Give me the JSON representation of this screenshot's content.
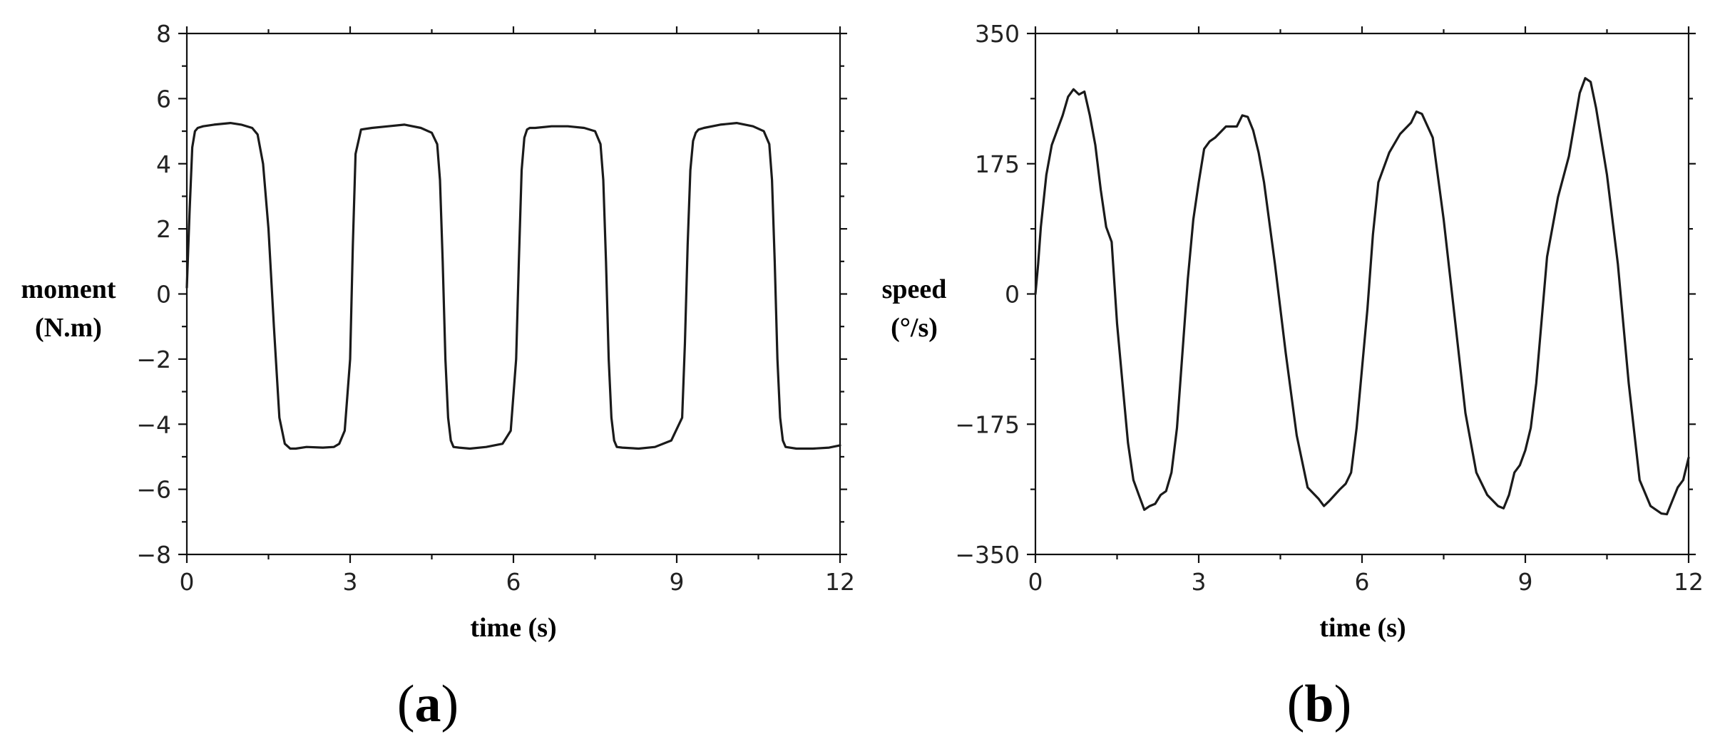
{
  "chart_data": [
    {
      "type": "line",
      "panel_label": "a",
      "xlabel": "time (s)",
      "ylabel": [
        "moment",
        "(N.m)"
      ],
      "xlim": [
        0,
        12
      ],
      "ylim": [
        -8,
        8
      ],
      "x_ticks": [
        "0",
        "3",
        "6",
        "9",
        "12"
      ],
      "y_ticks": [
        "8",
        "6",
        "4",
        "2",
        "0",
        "−2",
        "−4",
        "−6",
        "−8"
      ],
      "grid": false,
      "series": [
        {
          "x": [
            0,
            0.05,
            0.1,
            0.15,
            0.2,
            0.3,
            0.5,
            0.8,
            1.0,
            1.2,
            1.3,
            1.4,
            1.5,
            1.6,
            1.7,
            1.8,
            1.9,
            2.0,
            2.2,
            2.5,
            2.7,
            2.8,
            2.9,
            3.0,
            3.05,
            3.1,
            3.2,
            3.4,
            3.7,
            4.0,
            4.3,
            4.5,
            4.6,
            4.65,
            4.7,
            4.75,
            4.8,
            4.85,
            4.9,
            5.0,
            5.2,
            5.5,
            5.8,
            5.95,
            6.05,
            6.1,
            6.15,
            6.2,
            6.25,
            6.3,
            6.4,
            6.7,
            7.0,
            7.3,
            7.5,
            7.6,
            7.65,
            7.7,
            7.75,
            7.8,
            7.85,
            7.9,
            8.0,
            8.3,
            8.6,
            8.9,
            9.1,
            9.15,
            9.2,
            9.25,
            9.3,
            9.35,
            9.4,
            9.5,
            9.8,
            10.1,
            10.4,
            10.6,
            10.7,
            10.75,
            10.8,
            10.85,
            10.9,
            10.95,
            11.0,
            11.2,
            11.5,
            11.8,
            12.0
          ],
          "y": [
            0.2,
            2.5,
            4.5,
            5.0,
            5.1,
            5.15,
            5.2,
            5.25,
            5.2,
            5.1,
            4.9,
            4.0,
            2.0,
            -1.0,
            -3.8,
            -4.6,
            -4.75,
            -4.75,
            -4.7,
            -4.72,
            -4.7,
            -4.6,
            -4.2,
            -2.0,
            1.5,
            4.3,
            5.05,
            5.1,
            5.15,
            5.2,
            5.1,
            4.95,
            4.6,
            3.5,
            1.0,
            -2.0,
            -3.8,
            -4.5,
            -4.7,
            -4.72,
            -4.75,
            -4.7,
            -4.6,
            -4.2,
            -2.0,
            1.0,
            3.8,
            4.8,
            5.05,
            5.1,
            5.1,
            5.15,
            5.15,
            5.1,
            5.0,
            4.6,
            3.5,
            1.0,
            -2.0,
            -3.8,
            -4.5,
            -4.7,
            -4.72,
            -4.75,
            -4.7,
            -4.5,
            -3.8,
            -1.5,
            1.5,
            3.8,
            4.7,
            4.95,
            5.05,
            5.1,
            5.2,
            5.25,
            5.15,
            5.0,
            4.6,
            3.5,
            1.0,
            -2.0,
            -3.8,
            -4.5,
            -4.7,
            -4.75,
            -4.75,
            -4.72,
            -4.65
          ]
        }
      ]
    },
    {
      "type": "line",
      "panel_label": "b",
      "xlabel": "time (s)",
      "ylabel": [
        "speed",
        "(°/s)"
      ],
      "xlim": [
        0,
        12
      ],
      "ylim": [
        -350,
        350
      ],
      "x_ticks": [
        "0",
        "3",
        "6",
        "9",
        "12"
      ],
      "y_ticks": [
        "350",
        "175",
        "0",
        "−175",
        "−350"
      ],
      "grid": false,
      "series": [
        {
          "x": [
            0,
            0.05,
            0.1,
            0.2,
            0.3,
            0.4,
            0.5,
            0.6,
            0.7,
            0.8,
            0.9,
            1.0,
            1.1,
            1.2,
            1.3,
            1.4,
            1.5,
            1.6,
            1.7,
            1.8,
            1.9,
            2.0,
            2.1,
            2.2,
            2.3,
            2.4,
            2.5,
            2.6,
            2.7,
            2.8,
            2.9,
            3.0,
            3.1,
            3.2,
            3.3,
            3.5,
            3.7,
            3.8,
            3.9,
            4.0,
            4.1,
            4.2,
            4.4,
            4.6,
            4.8,
            5.0,
            5.2,
            5.3,
            5.4,
            5.5,
            5.6,
            5.7,
            5.8,
            5.9,
            6.0,
            6.1,
            6.2,
            6.3,
            6.5,
            6.7,
            6.9,
            7.0,
            7.1,
            7.3,
            7.5,
            7.7,
            7.9,
            8.1,
            8.3,
            8.5,
            8.6,
            8.7,
            8.8,
            8.9,
            9.0,
            9.1,
            9.2,
            9.4,
            9.6,
            9.8,
            10.0,
            10.1,
            10.2,
            10.3,
            10.5,
            10.7,
            10.9,
            11.1,
            11.3,
            11.5,
            11.6,
            11.7,
            11.8,
            11.9,
            12.0
          ],
          "y": [
            0,
            40,
            90,
            160,
            200,
            220,
            240,
            265,
            275,
            268,
            272,
            240,
            200,
            140,
            90,
            70,
            -40,
            -120,
            -200,
            -250,
            -270,
            -290,
            -285,
            -282,
            -270,
            -265,
            -240,
            -180,
            -80,
            20,
            100,
            150,
            195,
            205,
            210,
            225,
            225,
            240,
            238,
            220,
            190,
            150,
            40,
            -80,
            -190,
            -260,
            -275,
            -285,
            -278,
            -270,
            -262,
            -255,
            -240,
            -180,
            -100,
            -20,
            80,
            150,
            190,
            215,
            230,
            245,
            242,
            210,
            100,
            -30,
            -160,
            -240,
            -270,
            -285,
            -288,
            -270,
            -240,
            -230,
            -210,
            -180,
            -120,
            50,
            130,
            185,
            270,
            290,
            285,
            250,
            160,
            40,
            -120,
            -250,
            -285,
            -295,
            -296,
            -278,
            -260,
            -250,
            -220
          ]
        }
      ]
    }
  ]
}
